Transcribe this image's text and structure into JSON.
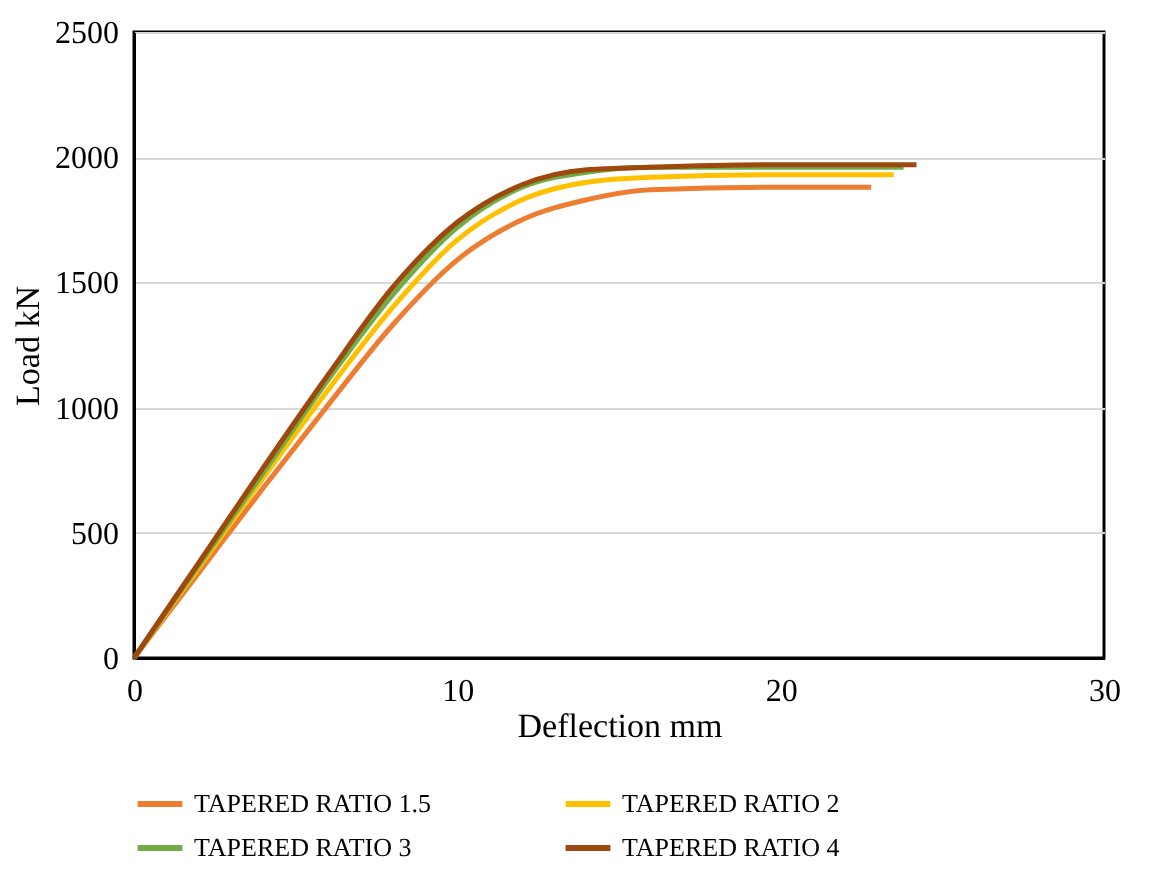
{
  "chart_data": {
    "type": "line",
    "xlabel": "Deflection mm",
    "ylabel": "Load kN",
    "xlim": [
      0,
      30
    ],
    "xticks": [
      0,
      10,
      20,
      30
    ],
    "ylim": [
      0,
      2500
    ],
    "yticks": [
      0,
      500,
      1000,
      1500,
      2000,
      2500
    ],
    "grid": "y",
    "legend": "bottom",
    "marker": "none",
    "line_style": "solid",
    "series": [
      {
        "name": "TAPERED RATIO 1.5",
        "color": "#ed7d31",
        "x": [
          0,
          2,
          4,
          6,
          8,
          10,
          12,
          14,
          16,
          20,
          22.8
        ],
        "values": [
          0,
          340,
          680,
          1010,
          1330,
          1590,
          1750,
          1830,
          1870,
          1880,
          1880
        ]
      },
      {
        "name": "TAPERED RATIO 2",
        "color": "#ffc000",
        "x": [
          0,
          2,
          4,
          6,
          8,
          10,
          12,
          14,
          16,
          20,
          23.5
        ],
        "values": [
          0,
          360,
          720,
          1070,
          1400,
          1670,
          1830,
          1900,
          1920,
          1930,
          1930
        ]
      },
      {
        "name": "TAPERED RATIO 3",
        "color": "#70ad47",
        "x": [
          0,
          2,
          4,
          6,
          8,
          10,
          12,
          14,
          16,
          20,
          23.8
        ],
        "values": [
          0,
          370,
          740,
          1110,
          1450,
          1720,
          1880,
          1940,
          1960,
          1960,
          1960
        ]
      },
      {
        "name": "TAPERED RATIO 4",
        "color": "#9e480e",
        "x": [
          0,
          2,
          4,
          6,
          8,
          10,
          12,
          14,
          16,
          20,
          24.2
        ],
        "values": [
          0,
          380,
          760,
          1130,
          1480,
          1740,
          1890,
          1950,
          1960,
          1970,
          1970
        ]
      }
    ]
  }
}
